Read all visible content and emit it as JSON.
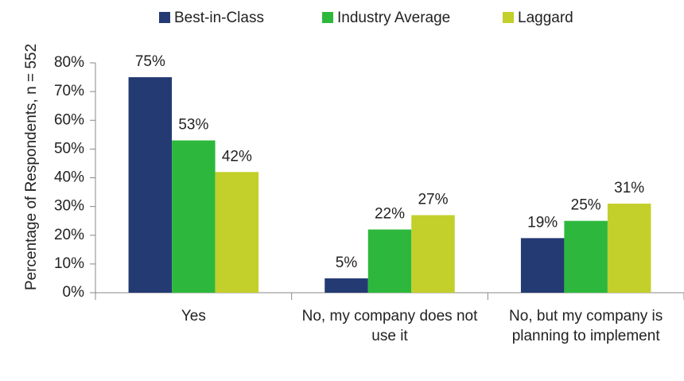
{
  "chart_data": {
    "type": "bar",
    "y_label": "Percentage of Respondents, n = 552",
    "categories": [
      "Yes",
      "No, my company does not use it",
      "No, but my company is planning to implement"
    ],
    "series": [
      {
        "name": "Best-in-Class",
        "color": "#243a73",
        "values": [
          75,
          5,
          19
        ],
        "value_labels": [
          "75%",
          "5%",
          "19%"
        ]
      },
      {
        "name": "Industry Average",
        "color": "#2db83d",
        "values": [
          53,
          22,
          25
        ],
        "value_labels": [
          "53%",
          "22%",
          "25%"
        ]
      },
      {
        "name": "Laggard",
        "color": "#c3cf2b",
        "values": [
          42,
          27,
          31
        ],
        "value_labels": [
          "42%",
          "27%",
          "31%"
        ]
      }
    ],
    "ylim": [
      0,
      80
    ],
    "yticks": [
      {
        "value": 0,
        "label": "0%"
      },
      {
        "value": 10,
        "label": "10%"
      },
      {
        "value": 20,
        "label": "20%"
      },
      {
        "value": 30,
        "label": "30%"
      },
      {
        "value": 40,
        "label": "40%"
      },
      {
        "value": 50,
        "label": "50%"
      },
      {
        "value": 60,
        "label": "60%"
      },
      {
        "value": 70,
        "label": "70%"
      },
      {
        "value": 80,
        "label": "80%"
      }
    ],
    "legend": "top",
    "grid": false
  }
}
